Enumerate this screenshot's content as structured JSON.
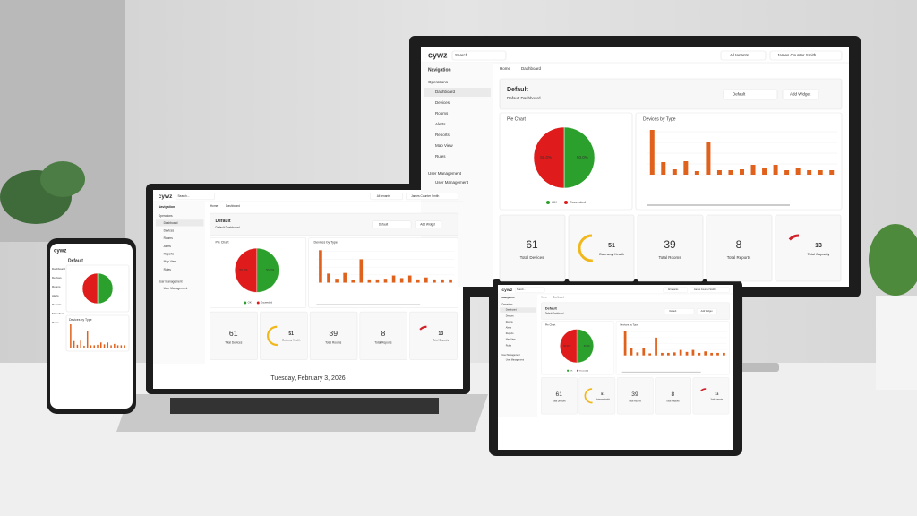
{
  "app": {
    "logo": "cywz",
    "search": "Search...",
    "tenant": "All tenants",
    "user": "James Counter Smith"
  },
  "nav": {
    "title": "Navigation",
    "section": "Operations",
    "items": [
      "Dashboard",
      "Devices",
      "Rooms",
      "Alerts",
      "Reports",
      "Map View",
      "Rules"
    ],
    "section2": "User Management",
    "items2": [
      "User Management"
    ]
  },
  "breadcrumb": [
    "Home",
    "Dashboard"
  ],
  "dashboard": {
    "title": "Default",
    "subtitle": "Default Dashboard",
    "selector": "Default",
    "button": "Add Widget"
  },
  "pie": {
    "title": "Pie Chart",
    "series": [
      {
        "name": "OK",
        "color": "#2ca02c",
        "value": 50,
        "label": "50.0%"
      },
      {
        "name": "Exceeded",
        "color": "#e01b1b",
        "value": 50,
        "label": "50.0%"
      }
    ]
  },
  "bars": {
    "title": "Devices by Type",
    "color": "#e0611c",
    "max": 100,
    "values": [
      100,
      28,
      12,
      30,
      8,
      72,
      10,
      10,
      12,
      22,
      14,
      22,
      10,
      16,
      10,
      10,
      10
    ]
  },
  "kpis": [
    {
      "value": 61,
      "label": "Total Devices",
      "color": "#1aa3c9"
    },
    {
      "value": 51,
      "label": "Gateway Health",
      "color": "#f0b81c",
      "gauge": true
    },
    {
      "value": 39,
      "label": "Total Rooms",
      "color": "#c0202a"
    },
    {
      "value": 8,
      "label": "Total Reports",
      "color": "#8a3cb8"
    },
    {
      "value": 13,
      "label": "Total Capacity",
      "color": "#d0202a",
      "gauge": true
    }
  ],
  "laptop": {
    "date": "Tuesday, February 3, 2026"
  }
}
